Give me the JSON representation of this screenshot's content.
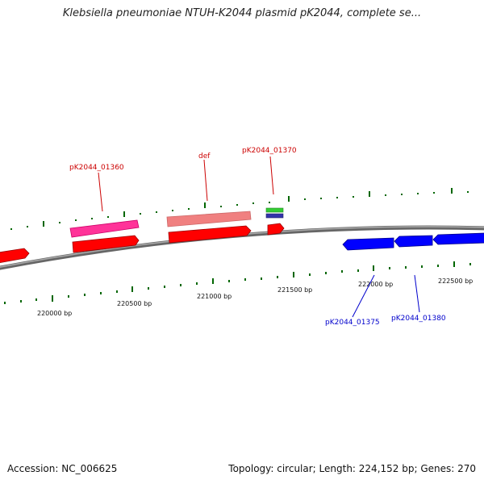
{
  "title": "Klebsiella pneumoniae NTUH-K2044 plasmid pK2044, complete se...",
  "footer": {
    "accession": "Accession: NC_006625",
    "summary": "Topology: circular; Length: 224,152 bp; Genes: 270"
  },
  "colors": {
    "backbone": "#888888",
    "forward_cds": "#ff0000",
    "reverse_cds": "#0000ff",
    "label_forward": "#cc0000",
    "label_reverse": "#0000cc",
    "tick": "#006600"
  },
  "ticks": [
    {
      "label": "220000 bp"
    },
    {
      "label": "220500 bp"
    },
    {
      "label": "221000 bp"
    },
    {
      "label": "221500 bp"
    },
    {
      "label": "222000 bp"
    },
    {
      "label": "222500 bp"
    }
  ],
  "gene_labels": [
    {
      "text": "pK2044_01360"
    },
    {
      "text": "def"
    },
    {
      "text": "pK2044_01370"
    },
    {
      "text": "pK2044_01375"
    },
    {
      "text": "pK2044_01380"
    }
  ]
}
